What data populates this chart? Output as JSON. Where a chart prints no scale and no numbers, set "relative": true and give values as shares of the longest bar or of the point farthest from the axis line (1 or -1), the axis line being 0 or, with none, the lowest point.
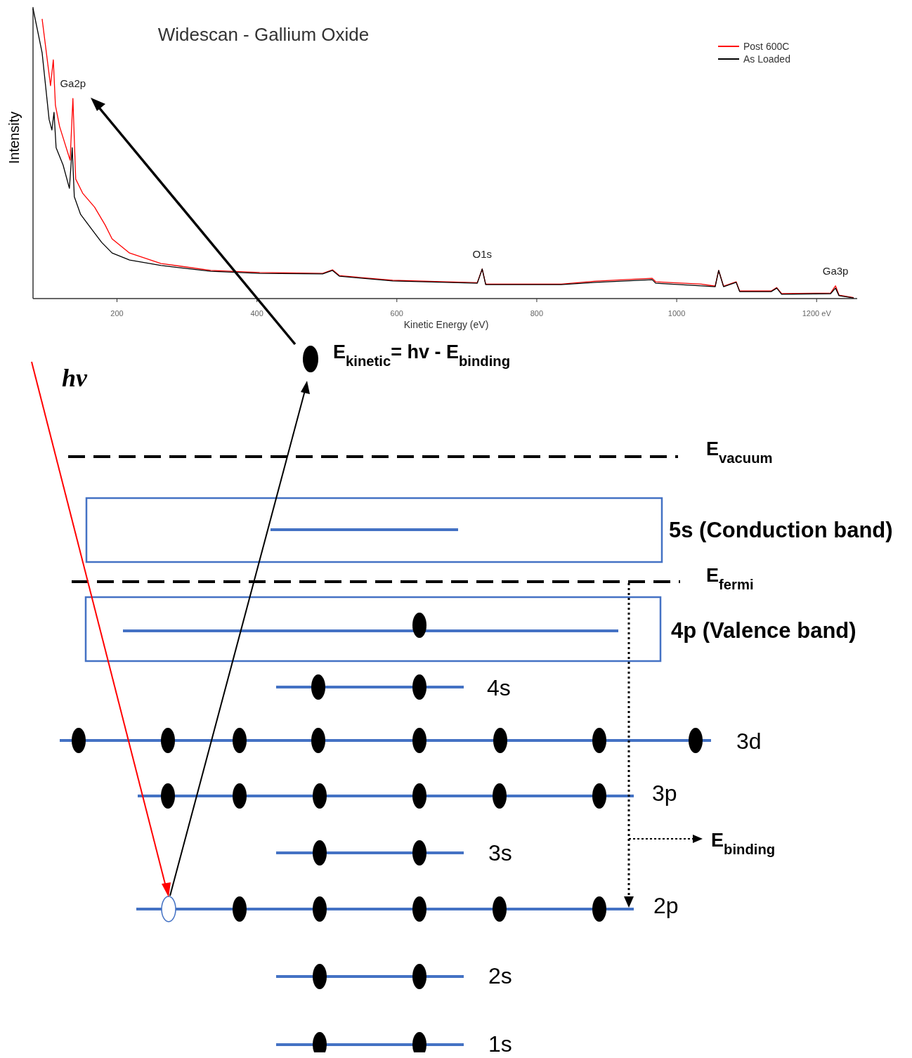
{
  "chart_data": {
    "type": "line",
    "title": "Widescan - Gallium Oxide",
    "xlabel": "Kinetic Energy (eV)",
    "ylabel": "Intensity",
    "relative": true,
    "xlim": [
      80,
      1258
    ],
    "xticks": [
      200,
      400,
      600,
      800,
      1000,
      {
        "value": 1200,
        "label": "1200 eV"
      }
    ],
    "legend": "top right",
    "line_style": "solid",
    "series": [
      {
        "name": "Post 600C",
        "color": "#ff0000",
        "x": [
          93,
          105,
          109,
          112,
          118,
          133,
          137,
          141,
          151,
          168,
          183,
          193,
          218,
          263,
          334,
          404,
          494,
          508,
          518,
          594,
          715,
          722,
          727,
          835,
          885,
          965,
          970,
          1035,
          1055,
          1060,
          1067,
          1085,
          1090,
          1135,
          1143,
          1150,
          1220,
          1227,
          1232,
          1253
        ],
        "values": [
          0.964,
          0.734,
          0.823,
          0.666,
          0.593,
          0.477,
          0.69,
          0.412,
          0.363,
          0.315,
          0.254,
          0.206,
          0.157,
          0.121,
          0.097,
          0.09,
          0.087,
          0.099,
          0.079,
          0.063,
          0.055,
          0.102,
          0.05,
          0.05,
          0.06,
          0.07,
          0.058,
          0.05,
          0.043,
          0.097,
          0.043,
          0.058,
          0.026,
          0.026,
          0.038,
          0.017,
          0.019,
          0.044,
          0.012,
          0.003
        ]
      },
      {
        "name": "As Loaded",
        "color": "#000000",
        "x": [
          80,
          93,
          103,
          107,
          110,
          113,
          123,
          132,
          136,
          139,
          148,
          163,
          178,
          193,
          218,
          263,
          334,
          404,
          494,
          508,
          518,
          594,
          715,
          722,
          727,
          835,
          885,
          965,
          970,
          1035,
          1055,
          1060,
          1067,
          1085,
          1090,
          1135,
          1143,
          1150,
          1220,
          1227,
          1232,
          1253
        ],
        "values": [
          1.0,
          0.847,
          0.617,
          0.581,
          0.642,
          0.52,
          0.46,
          0.38,
          0.52,
          0.351,
          0.29,
          0.242,
          0.194,
          0.157,
          0.133,
          0.114,
          0.094,
          0.087,
          0.085,
          0.097,
          0.077,
          0.061,
          0.053,
          0.102,
          0.048,
          0.048,
          0.056,
          0.065,
          0.053,
          0.044,
          0.041,
          0.097,
          0.041,
          0.056,
          0.024,
          0.024,
          0.036,
          0.015,
          0.017,
          0.036,
          0.01,
          0.002
        ]
      }
    ],
    "annotations": [
      {
        "text": "Ga2p",
        "x": 137,
        "y": 0.69
      },
      {
        "text": "O1s",
        "x": 722,
        "y": 0.102
      },
      {
        "text": "Ga3p",
        "x": 1227,
        "y": 0.044
      },
      "hv",
      "E$_{kinetic}$= hv - E$_{binding}$",
      "E$_{vacuum}$",
      "5s (Conduction band)",
      "E$_{fermi}$",
      "4p (Valence band)",
      "4s",
      "3d",
      "3p",
      "3s",
      "2p",
      "2s",
      "1s",
      "E$_{binding}$"
    ]
  }
}
